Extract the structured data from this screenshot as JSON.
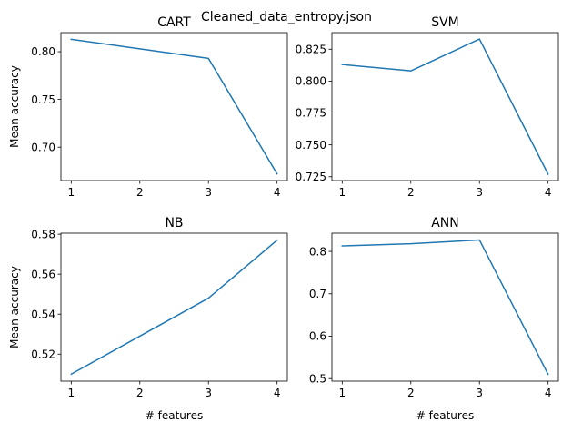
{
  "figure": {
    "suptitle": "Cleaned_data_entropy.json",
    "line_color": "#1f77b4"
  },
  "chart_data": [
    {
      "type": "line",
      "title": "CART",
      "xlabel": "",
      "ylabel": "Mean accuracy",
      "x": [
        1,
        2,
        3,
        4
      ],
      "values": [
        0.813,
        0.803,
        0.793,
        0.672
      ],
      "xlim": [
        0.85,
        4.15
      ],
      "ylim": [
        0.665,
        0.82
      ],
      "xticks": [
        1,
        2,
        3,
        4
      ],
      "xtick_labels": [
        "1",
        "2",
        "3",
        "4"
      ],
      "yticks": [
        0.7,
        0.75,
        0.8
      ],
      "ytick_labels": [
        "0.70",
        "0.75",
        "0.80"
      ],
      "grid": false
    },
    {
      "type": "line",
      "title": "SVM",
      "xlabel": "",
      "ylabel": "",
      "x": [
        1,
        2,
        3,
        4
      ],
      "values": [
        0.813,
        0.808,
        0.833,
        0.727
      ],
      "xlim": [
        0.85,
        4.15
      ],
      "ylim": [
        0.722,
        0.838
      ],
      "xticks": [
        1,
        2,
        3,
        4
      ],
      "xtick_labels": [
        "1",
        "2",
        "3",
        "4"
      ],
      "yticks": [
        0.725,
        0.75,
        0.775,
        0.8,
        0.825
      ],
      "ytick_labels": [
        "0.725",
        "0.750",
        "0.775",
        "0.800",
        "0.825"
      ],
      "grid": false
    },
    {
      "type": "line",
      "title": "NB",
      "xlabel": "# features",
      "ylabel": "Mean accuracy",
      "x": [
        1,
        2,
        3,
        4
      ],
      "values": [
        0.51,
        0.529,
        0.548,
        0.577
      ],
      "xlim": [
        0.85,
        4.15
      ],
      "ylim": [
        0.5065,
        0.5805
      ],
      "xticks": [
        1,
        2,
        3,
        4
      ],
      "xtick_labels": [
        "1",
        "2",
        "3",
        "4"
      ],
      "yticks": [
        0.52,
        0.54,
        0.56,
        0.58
      ],
      "ytick_labels": [
        "0.52",
        "0.54",
        "0.56",
        "0.58"
      ],
      "grid": false
    },
    {
      "type": "line",
      "title": "ANN",
      "xlabel": "# features",
      "ylabel": "",
      "x": [
        1,
        2,
        3,
        4
      ],
      "values": [
        0.813,
        0.818,
        0.827,
        0.51
      ],
      "xlim": [
        0.85,
        4.15
      ],
      "ylim": [
        0.494,
        0.843
      ],
      "xticks": [
        1,
        2,
        3,
        4
      ],
      "xtick_labels": [
        "1",
        "2",
        "3",
        "4"
      ],
      "yticks": [
        0.5,
        0.6,
        0.7,
        0.8
      ],
      "ytick_labels": [
        "0.5",
        "0.6",
        "0.7",
        "0.8"
      ],
      "grid": false
    }
  ]
}
